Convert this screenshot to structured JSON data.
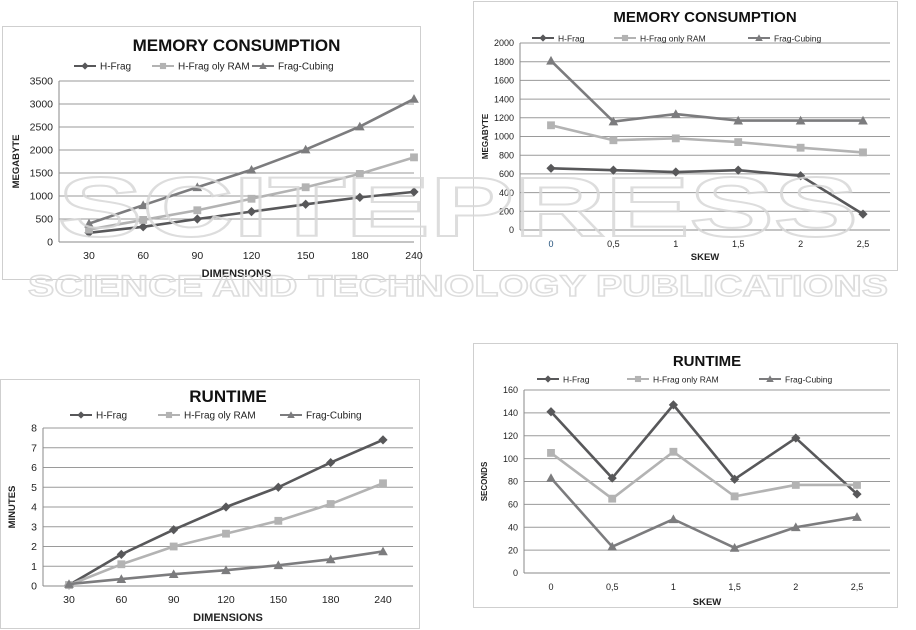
{
  "colors": {
    "dark": "#58585a",
    "light": "#b3b3b3",
    "medium": "#7c7c7e",
    "grid": "#9a9a9a",
    "watermark": "#e7e7e7"
  },
  "watermark": {
    "brand": "SCITEPRESS",
    "tagline": "SCIENCE AND TECHNOLOGY PUBLICATIONS"
  },
  "chart_data": [
    {
      "id": "memory-dimensions",
      "type": "line",
      "title": "MEMORY CONSUMPTION",
      "xlabel": "DIMENSIONS",
      "ylabel": "MEGABYTE",
      "categories": [
        "30",
        "60",
        "90",
        "120",
        "150",
        "180",
        "240"
      ],
      "ylim": [
        0,
        3500
      ],
      "yticks": [
        0,
        500,
        1000,
        1500,
        2000,
        2500,
        3000,
        3500
      ],
      "grid": true,
      "legend_position": "top",
      "series": [
        {
          "name": "H-Frag",
          "marker": "diamond",
          "color": "#58585a",
          "values": [
            200,
            330,
            500,
            660,
            820,
            970,
            1090
          ]
        },
        {
          "name": "H-Frag oly RAM",
          "marker": "square",
          "color": "#b3b3b3",
          "values": [
            270,
            480,
            690,
            940,
            1190,
            1480,
            1840
          ]
        },
        {
          "name": "Frag-Cubing",
          "marker": "triangle",
          "color": "#7c7c7e",
          "values": [
            400,
            800,
            1190,
            1570,
            2010,
            2510,
            3110
          ]
        }
      ]
    },
    {
      "id": "memory-skew",
      "type": "line",
      "title": "MEMORY CONSUMPTION",
      "xlabel": "SKEW",
      "ylabel": "MEGABYTE",
      "categories": [
        "0",
        "0,5",
        "1",
        "1,5",
        "2",
        "2,5"
      ],
      "ylim": [
        0,
        2000
      ],
      "yticks": [
        0,
        200,
        400,
        600,
        800,
        1000,
        1200,
        1400,
        1600,
        1800,
        2000
      ],
      "grid": true,
      "legend_position": "top",
      "series": [
        {
          "name": "H-Frag",
          "marker": "diamond",
          "color": "#58585a",
          "values": [
            660,
            640,
            620,
            640,
            580,
            170
          ]
        },
        {
          "name": "H-Frag only  RAM",
          "marker": "square",
          "color": "#b3b3b3",
          "values": [
            1120,
            960,
            980,
            940,
            880,
            830
          ]
        },
        {
          "name": "Frag-Cubing",
          "marker": "triangle",
          "color": "#7c7c7e",
          "values": [
            1810,
            1160,
            1240,
            1170,
            1170,
            1170
          ]
        }
      ]
    },
    {
      "id": "runtime-dimensions",
      "type": "line",
      "title": "RUNTIME",
      "xlabel": "DIMENSIONS",
      "ylabel": "MINUTES",
      "categories": [
        "30",
        "60",
        "90",
        "120",
        "150",
        "180",
        "240"
      ],
      "ylim": [
        0,
        8
      ],
      "yticks": [
        0,
        1,
        2,
        3,
        4,
        5,
        6,
        7,
        8
      ],
      "grid": true,
      "legend_position": "top",
      "series": [
        {
          "name": "H-Frag",
          "marker": "diamond",
          "color": "#58585a",
          "values": [
            0.05,
            1.6,
            2.85,
            4.0,
            5.0,
            6.25,
            7.4
          ]
        },
        {
          "name": "H-Frag oly RAM",
          "marker": "square",
          "color": "#b3b3b3",
          "values": [
            0.05,
            1.1,
            2.0,
            2.65,
            3.3,
            4.15,
            5.2
          ]
        },
        {
          "name": "Frag-Cubing",
          "marker": "triangle",
          "color": "#7c7c7e",
          "values": [
            0.1,
            0.35,
            0.6,
            0.8,
            1.05,
            1.35,
            1.75
          ]
        }
      ]
    },
    {
      "id": "runtime-skew",
      "type": "line",
      "title": "RUNTIME",
      "xlabel": "SKEW",
      "ylabel": "SECONDS",
      "categories": [
        "0",
        "0,5",
        "1",
        "1,5",
        "2",
        "2,5"
      ],
      "ylim": [
        0,
        160
      ],
      "yticks": [
        0,
        20,
        40,
        60,
        80,
        100,
        120,
        140,
        160
      ],
      "grid": true,
      "legend_position": "top",
      "series": [
        {
          "name": "H-Frag",
          "marker": "diamond",
          "color": "#58585a",
          "values": [
            141,
            83,
            147,
            82,
            118,
            69
          ]
        },
        {
          "name": "H-Frag only  RAM",
          "marker": "square",
          "color": "#b3b3b3",
          "values": [
            105,
            65,
            106,
            67,
            77,
            77
          ]
        },
        {
          "name": "Frag-Cubing",
          "marker": "triangle",
          "color": "#7c7c7e",
          "values": [
            83,
            23,
            47,
            22,
            40,
            49
          ]
        }
      ]
    }
  ]
}
